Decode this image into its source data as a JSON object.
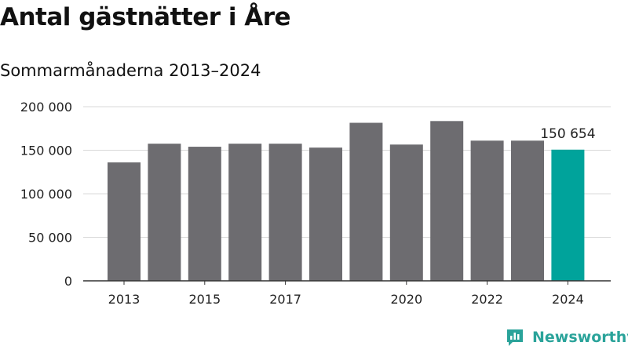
{
  "title": "Antal gästnätter i Åre",
  "subtitle": "Sommarmånaderna 2013–2024",
  "brand": {
    "name": "Newsworthy",
    "icon": "newsworthy-logo-icon",
    "color": "#2aa39a"
  },
  "chart_data": {
    "type": "bar",
    "categories": [
      "2013",
      "2014",
      "2015",
      "2016",
      "2017",
      "2018",
      "2019",
      "2020",
      "2021",
      "2022",
      "2023",
      "2024"
    ],
    "values": [
      136000,
      157500,
      154000,
      157500,
      157500,
      153000,
      181500,
      156500,
      183500,
      161000,
      161000,
      150654
    ],
    "x_tick_labels": [
      "2013",
      "2015",
      "2017",
      "2020",
      "2022",
      "2024"
    ],
    "y_ticks": [
      0,
      50000,
      100000,
      150000,
      200000
    ],
    "y_tick_labels": [
      "0",
      "50 000",
      "100 000",
      "150 000",
      "200 000"
    ],
    "ylim": [
      0,
      200000
    ],
    "highlight": {
      "category": "2024",
      "label": "150 654"
    },
    "colors": {
      "bar": "#6d6c70",
      "highlight": "#00a39b",
      "grid": "#d9d9d9",
      "axis": "#333333"
    },
    "grid": true,
    "xlabel": "",
    "ylabel": ""
  }
}
